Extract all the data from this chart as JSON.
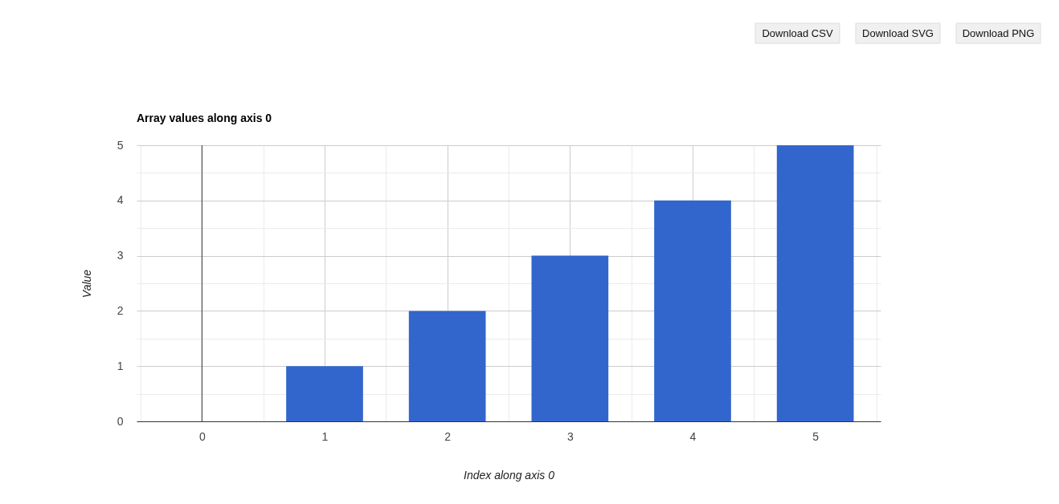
{
  "chart_data": {
    "type": "bar",
    "title": "Array values along axis 0",
    "xlabel": "Index along axis 0",
    "ylabel": "Value",
    "x": [
      0,
      1,
      2,
      3,
      4,
      5
    ],
    "values": [
      0,
      1,
      2,
      3,
      4,
      5
    ],
    "color": "#3366cc",
    "xlim": [
      -0.5,
      5.5
    ],
    "xticks": [
      {
        "value": -0.5,
        "label": null
      },
      0,
      {
        "value": 0.5,
        "label": null
      },
      1,
      {
        "value": 1.5,
        "label": null
      },
      2,
      {
        "value": 2.5,
        "label": null
      },
      3,
      {
        "value": 3.5,
        "label": null
      },
      4,
      {
        "value": 4.5,
        "label": null
      },
      5,
      {
        "value": 5.5,
        "label": null
      }
    ],
    "ylim": [
      0,
      5
    ],
    "yticks": [
      0,
      {
        "value": 0.5,
        "label": null
      },
      1,
      {
        "value": 1.5,
        "label": null
      },
      2,
      {
        "value": 2.5,
        "label": null
      },
      3,
      {
        "value": 3.5,
        "label": null
      },
      4,
      {
        "value": 4.5,
        "label": null
      },
      5
    ],
    "grid": true,
    "ref_lines": [
      {
        "axis": "x",
        "value": 0,
        "color": "#333333"
      }
    ],
    "annotations": [
      "Download CSV",
      "Download SVG",
      "Download PNG"
    ]
  }
}
